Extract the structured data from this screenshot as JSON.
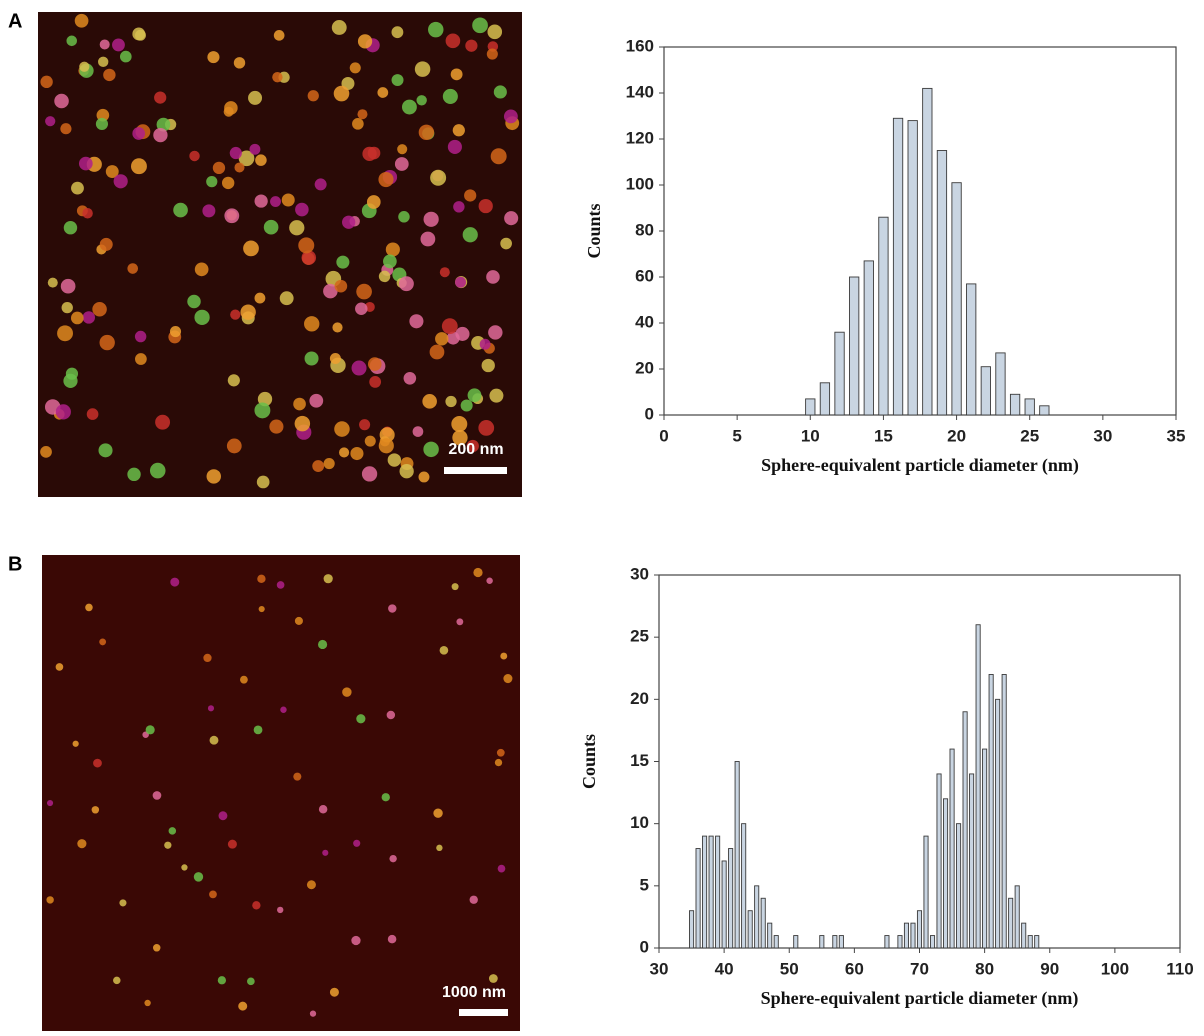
{
  "panels": [
    {
      "label": "A",
      "scale_bar": "200 nm"
    },
    {
      "label": "B",
      "scale_bar": "1000 nm"
    }
  ],
  "chart_data": [
    {
      "type": "histogram",
      "xlabel": "Sphere-equivalent particle diameter (nm)",
      "ylabel": "Counts",
      "bins": [
        9.5,
        10.5,
        11.5,
        12.5,
        13.5,
        14.5,
        15.5,
        16.5,
        17.5,
        18.5,
        19.5,
        20.5,
        21.5,
        22.5,
        23.5,
        24.5,
        25.5,
        26.5
      ],
      "values": [
        7,
        14,
        36,
        60,
        67,
        86,
        129,
        128,
        142,
        115,
        101,
        57,
        21,
        27,
        9,
        7,
        4
      ],
      "color": "#c9d5e2",
      "xlim": [
        0,
        35
      ],
      "xticks": [
        0,
        5,
        10,
        15,
        20,
        25,
        30,
        35
      ],
      "ylim": [
        0,
        160
      ],
      "yticks": [
        0,
        20,
        40,
        60,
        80,
        100,
        120,
        140,
        160
      ]
    },
    {
      "type": "histogram",
      "xlabel": "Sphere-equivalent particle diameter (nm)",
      "ylabel": "Counts",
      "bins": [
        34.5,
        35.5,
        36.5,
        37.5,
        38.5,
        39.5,
        40.5,
        41.5,
        42.5,
        43.5,
        44.5,
        45.5,
        46.5,
        47.5,
        48.5,
        49.5,
        50.5,
        51.5,
        52.5,
        53.5,
        54.5,
        55.5,
        56.5,
        57.5,
        58.5,
        59.5,
        60.5,
        61.5,
        62.5,
        63.5,
        64.5,
        65.5,
        66.5,
        67.5,
        68.5,
        69.5,
        70.5,
        71.5,
        72.5,
        73.5,
        74.5,
        75.5,
        76.5,
        77.5,
        78.5,
        79.5,
        80.5,
        81.5,
        82.5,
        83.5,
        84.5,
        85.5,
        86.5,
        87.5,
        88.5
      ],
      "values": [
        3,
        8,
        9,
        9,
        9,
        7,
        8,
        15,
        10,
        3,
        5,
        4,
        2,
        1,
        0,
        0,
        1,
        0,
        0,
        0,
        1,
        0,
        1,
        1,
        0,
        0,
        0,
        0,
        0,
        0,
        1,
        0,
        1,
        2,
        2,
        3,
        9,
        1,
        14,
        12,
        16,
        10,
        19,
        14,
        26,
        16,
        22,
        20,
        22,
        4,
        5,
        2,
        1,
        1
      ],
      "color": "#c9d5e2",
      "xlim": [
        30,
        110
      ],
      "xticks": [
        30,
        40,
        50,
        60,
        70,
        80,
        90,
        100,
        110
      ],
      "ylim": [
        0,
        30
      ],
      "yticks": [
        0,
        5,
        10,
        15,
        20,
        25,
        30
      ]
    }
  ]
}
